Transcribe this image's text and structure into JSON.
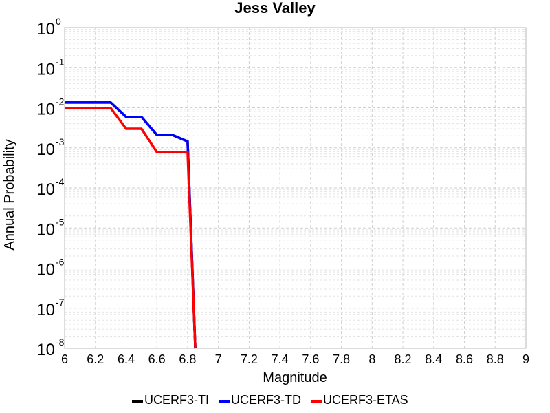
{
  "chart_data": {
    "type": "line",
    "title": "Jess Valley",
    "xlabel": "Magnitude",
    "ylabel": "Annual Probability",
    "xlim": [
      6,
      9
    ],
    "ylim": [
      1e-08,
      1
    ],
    "yscale": "log",
    "grid": true,
    "legend_position": "bottom",
    "x_ticks": [
      "6",
      "6.2",
      "6.4",
      "6.6",
      "6.8",
      "7",
      "7.2",
      "7.4",
      "7.6",
      "7.8",
      "8",
      "8.2",
      "8.4",
      "8.6",
      "8.8",
      "9"
    ],
    "y_ticks": [
      {
        "base": "10",
        "exp": "0"
      },
      {
        "base": "10",
        "exp": "-1"
      },
      {
        "base": "10",
        "exp": "-2"
      },
      {
        "base": "10",
        "exp": "-3"
      },
      {
        "base": "10",
        "exp": "-4"
      },
      {
        "base": "10",
        "exp": "-5"
      },
      {
        "base": "10",
        "exp": "-6"
      },
      {
        "base": "10",
        "exp": "-7"
      },
      {
        "base": "10",
        "exp": "-8"
      }
    ],
    "series": [
      {
        "name": "UCERF3-TI",
        "color": "#000000",
        "x": [
          6.0,
          6.3,
          6.4,
          6.5,
          6.6,
          6.7,
          6.8,
          6.85
        ],
        "y": [
          0.0135,
          0.0135,
          0.0059,
          0.0059,
          0.0021,
          0.0021,
          0.00145,
          1e-08
        ]
      },
      {
        "name": "UCERF3-TD",
        "color": "#0000ff",
        "x": [
          6.0,
          6.3,
          6.4,
          6.5,
          6.6,
          6.7,
          6.8,
          6.85
        ],
        "y": [
          0.0135,
          0.0135,
          0.0059,
          0.0059,
          0.0021,
          0.0021,
          0.00145,
          1e-08
        ]
      },
      {
        "name": "UCERF3-ETAS",
        "color": "#ff0000",
        "x": [
          6.0,
          6.3,
          6.4,
          6.5,
          6.6,
          6.7,
          6.8,
          6.85
        ],
        "y": [
          0.0098,
          0.0098,
          0.003,
          0.003,
          0.00078,
          0.00078,
          0.00078,
          1e-08
        ]
      }
    ]
  }
}
